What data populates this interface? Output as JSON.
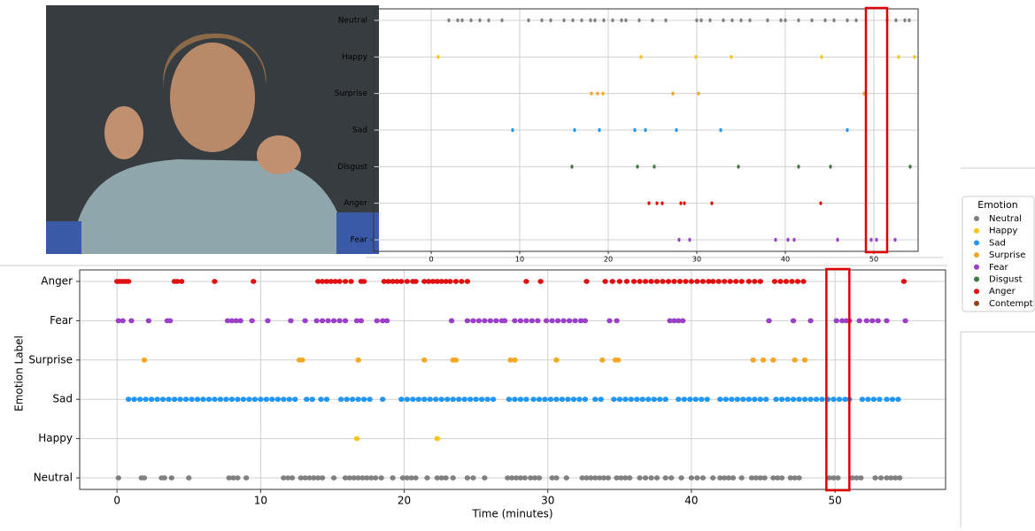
{
  "chart_data": [
    {
      "type": "scatter",
      "xlim": [
        -6.5,
        55
      ],
      "xticks": [
        0,
        10,
        20,
        30,
        40,
        50
      ],
      "grid": true,
      "highlight": [
        49.1,
        51.5
      ],
      "series": [
        {
          "name": "Neutral",
          "color": "#808080",
          "values": [
            2,
            3,
            3.5,
            4.5,
            5.5,
            6.5,
            8,
            11,
            12.5,
            13.5,
            15,
            16,
            17,
            18,
            18.5,
            19.5,
            20.5,
            21.5,
            22,
            23.5,
            25,
            26.5,
            30,
            30.5,
            31.5,
            33,
            34,
            35,
            36,
            38,
            39.5,
            40,
            41.5,
            43,
            44.5,
            45.5,
            47,
            48,
            51.5,
            52.5,
            53.5,
            54
          ]
        },
        {
          "name": "Happy",
          "color": "#f5c518",
          "values": [
            0.8,
            23.7,
            29.9,
            33.9,
            44.1,
            52.8,
            54.6
          ]
        },
        {
          "name": "Surprise",
          "color": "#f5a623",
          "values": [
            18.1,
            18.8,
            19.4,
            27.3,
            30.2,
            48.9
          ]
        },
        {
          "name": "Sad",
          "color": "#2196f3",
          "values": [
            9.2,
            16.2,
            19.0,
            23.0,
            24.2,
            27.7,
            32.7,
            47.0
          ]
        },
        {
          "name": "Disgust",
          "color": "#3d7a3d",
          "values": [
            15.9,
            23.3,
            25.2,
            34.7,
            41.5,
            45.1,
            54.1
          ]
        },
        {
          "name": "Anger",
          "color": "#e01010",
          "values": [
            24.6,
            25.5,
            26.1,
            28.2,
            28.6,
            31.7,
            44.0
          ]
        },
        {
          "name": "Fear",
          "color": "#9b3fc8",
          "values": [
            28.0,
            29.2,
            38.9,
            40.3,
            41.0,
            45.9,
            49.7,
            50.3,
            52.4
          ]
        }
      ]
    },
    {
      "type": "scatter",
      "xlim": [
        -2.6,
        57.7
      ],
      "xticks": [
        0,
        10,
        20,
        30,
        40,
        50
      ],
      "grid": true,
      "highlight": [
        49.4,
        51.0
      ],
      "x_label": "Time (minutes)",
      "y_label": "Emotion Label",
      "series": [
        {
          "name": "Anger",
          "color": "#e01010",
          "values": [
            0,
            0.2,
            0.4,
            0.6,
            0.8,
            4.0,
            4.2,
            4.5,
            6.8,
            9.5,
            14.0,
            14.3,
            14.6,
            14.9,
            15.2,
            15.5,
            15.9,
            16.3,
            17.0,
            17.2,
            18.6,
            18.9,
            19.2,
            19.5,
            19.8,
            20.2,
            20.6,
            20.8,
            21.4,
            21.7,
            22.0,
            22.3,
            22.6,
            22.9,
            23.2,
            23.6,
            24.0,
            24.4,
            28.5,
            29.5,
            32.7,
            34.0,
            34.5,
            35.0,
            35.5,
            36.0,
            36.4,
            36.8,
            37.2,
            37.6,
            38.0,
            38.4,
            38.8,
            39.2,
            39.6,
            40.0,
            40.4,
            40.8,
            41.2,
            41.5,
            41.9,
            42.3,
            42.7,
            43.1,
            43.5,
            44.0,
            44.4,
            44.8,
            45.8,
            46.2,
            46.6,
            47.0,
            47.4,
            47.8,
            54.8
          ]
        },
        {
          "name": "Fear",
          "color": "#9b3fc8",
          "values": [
            0.1,
            0.4,
            1.0,
            2.2,
            3.5,
            3.7,
            7.7,
            8.0,
            8.3,
            8.6,
            9.4,
            10.5,
            12.1,
            13.1,
            13.9,
            14.3,
            14.7,
            15.1,
            15.5,
            15.9,
            16.7,
            17.0,
            18.1,
            18.5,
            18.8,
            23.3,
            24.4,
            24.8,
            25.2,
            25.6,
            26.0,
            26.4,
            26.8,
            27.0,
            27.7,
            28.1,
            28.5,
            28.9,
            29.3,
            29.9,
            30.3,
            30.7,
            31.1,
            31.5,
            31.9,
            32.3,
            32.6,
            34.3,
            34.8,
            38.5,
            38.8,
            39.1,
            39.4,
            45.4,
            47.1,
            48.3,
            50.1,
            50.5,
            50.8,
            51.0,
            51.7,
            52.2,
            52.6,
            53.0,
            53.6,
            54.9
          ]
        },
        {
          "name": "Surprise",
          "color": "#f5a623",
          "values": [
            1.9,
            12.7,
            12.9,
            16.8,
            21.4,
            23.4,
            23.6,
            27.4,
            27.7,
            30.6,
            33.8,
            34.7,
            34.9,
            44.3,
            45.0,
            45.7,
            47.2,
            47.9
          ]
        },
        {
          "name": "Sad",
          "color": "#2196f3",
          "values": [
            0.8,
            1.2,
            1.6,
            2.0,
            2.4,
            2.8,
            3.2,
            3.6,
            4.0,
            4.4,
            4.8,
            5.2,
            5.6,
            6.0,
            6.4,
            6.8,
            7.2,
            7.6,
            8.0,
            8.4,
            8.8,
            9.2,
            9.6,
            10.0,
            10.4,
            10.8,
            11.2,
            11.6,
            12.0,
            12.4,
            13.2,
            13.6,
            14.2,
            14.6,
            15.6,
            16.0,
            16.4,
            16.8,
            17.2,
            17.6,
            18.5,
            19.8,
            20.2,
            20.6,
            21.0,
            21.4,
            21.8,
            22.2,
            22.6,
            23.0,
            23.4,
            23.8,
            24.2,
            24.6,
            25.0,
            25.4,
            25.8,
            26.2,
            27.3,
            27.7,
            28.1,
            28.5,
            29.0,
            29.4,
            29.8,
            30.2,
            30.6,
            31.0,
            31.4,
            31.8,
            32.2,
            32.6,
            33.3,
            33.7,
            34.6,
            35.0,
            35.4,
            35.8,
            36.2,
            36.6,
            37.0,
            37.4,
            37.8,
            38.2,
            39.1,
            39.5,
            39.9,
            40.3,
            40.7,
            41.1,
            42.0,
            42.4,
            42.8,
            43.2,
            43.6,
            44.0,
            44.4,
            44.8,
            45.2,
            45.9,
            46.3,
            46.7,
            47.1,
            47.5,
            47.9,
            48.3,
            48.7,
            49.1,
            49.5,
            49.9,
            50.3,
            50.7,
            51.0,
            51.9,
            52.3,
            52.7,
            53.1,
            53.6,
            54.0,
            54.4
          ]
        },
        {
          "name": "Happy",
          "color": "#f5c518",
          "values": [
            16.7,
            22.3
          ]
        },
        {
          "name": "Neutral",
          "color": "#808080",
          "values": [
            0.1,
            1.7,
            1.9,
            3.1,
            3.3,
            3.8,
            5.0,
            7.8,
            8.1,
            8.4,
            9.0,
            11.6,
            11.9,
            12.2,
            12.8,
            13.1,
            13.4,
            13.7,
            14.0,
            14.3,
            15.1,
            15.9,
            16.2,
            16.5,
            16.8,
            17.1,
            17.4,
            17.7,
            18.0,
            18.4,
            19.2,
            19.9,
            20.2,
            20.5,
            20.8,
            21.6,
            22.3,
            22.6,
            22.9,
            23.4,
            24.4,
            24.8,
            25.6,
            27.2,
            27.5,
            27.8,
            28.1,
            28.4,
            28.8,
            29.1,
            29.4,
            30.3,
            30.6,
            31.3,
            32.4,
            32.7,
            33.0,
            33.3,
            33.6,
            33.9,
            34.2,
            34.8,
            35.1,
            35.4,
            35.7,
            36.4,
            36.8,
            37.2,
            37.6,
            38.2,
            38.6,
            39.3,
            40.0,
            40.4,
            40.8,
            41.5,
            42.0,
            42.3,
            42.6,
            42.9,
            43.5,
            44.2,
            44.5,
            44.8,
            45.1,
            45.7,
            46.0,
            46.3,
            46.9,
            47.2,
            47.5,
            49.6,
            49.9,
            50.2,
            51.2,
            51.5,
            51.8,
            52.8,
            53.2,
            53.6,
            53.9,
            54.2,
            54.5
          ]
        }
      ]
    }
  ],
  "legend": {
    "title": "Emotion",
    "items": [
      {
        "name": "Neutral",
        "color": "#808080"
      },
      {
        "name": "Happy",
        "color": "#f5c518"
      },
      {
        "name": "Sad",
        "color": "#2196f3"
      },
      {
        "name": "Surprise",
        "color": "#f5a623"
      },
      {
        "name": "Fear",
        "color": "#9b3fc8"
      },
      {
        "name": "Disgust",
        "color": "#3d7a3d"
      },
      {
        "name": "Anger",
        "color": "#e01010"
      },
      {
        "name": "Contempt",
        "color": "#8b4513"
      }
    ]
  }
}
